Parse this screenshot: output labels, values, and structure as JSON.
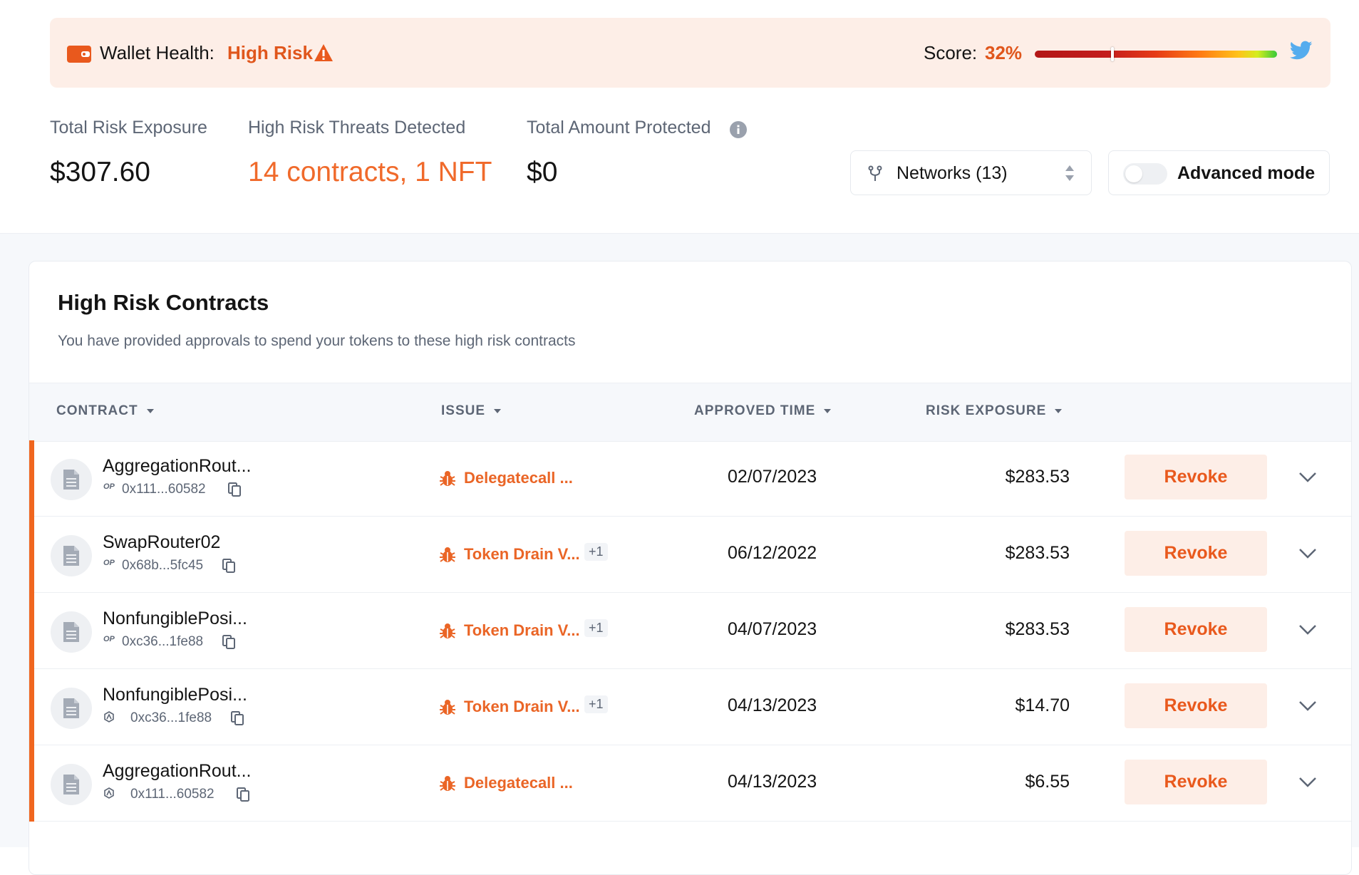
{
  "banner": {
    "health_label": "Wallet Health:",
    "health_value": "High Risk",
    "score_label": "Score:",
    "score_value": "32%",
    "score_fraction": 0.32,
    "icons": [
      "wallet-icon",
      "warning-icon",
      "twitter-icon"
    ]
  },
  "stats": {
    "exposure_label": "Total Risk Exposure",
    "exposure_value": "$307.60",
    "threats_label": "High Risk Threats Detected",
    "threats_value": "14 contracts, 1 NFT",
    "protected_label": "Total Amount Protected",
    "protected_value": "$0"
  },
  "controls": {
    "networks_label": "Networks (13)",
    "advanced_label": "Advanced mode",
    "advanced_on": false
  },
  "card": {
    "title": "High Risk Contracts",
    "subtitle": "You have provided approvals to spend your tokens to these high risk contracts",
    "columns": [
      "CONTRACT",
      "ISSUE",
      "APPROVED TIME",
      "RISK EXPOSURE"
    ],
    "revoke_label": "Revoke",
    "rows": [
      {
        "name": "AggregationRout...",
        "chain": "OP",
        "address": "0x111...60582",
        "issue": "Delegatecall ...",
        "extra": "",
        "date": "02/07/2023",
        "amount": "$283.53"
      },
      {
        "name": "SwapRouter02",
        "chain": "OP",
        "address": "0x68b...5fc45",
        "issue": "Token Drain V...",
        "extra": "+1",
        "date": "06/12/2022",
        "amount": "$283.53"
      },
      {
        "name": "NonfungiblePosi...",
        "chain": "OP",
        "address": "0xc36...1fe88",
        "issue": "Token Drain V...",
        "extra": "+1",
        "date": "04/07/2023",
        "amount": "$283.53"
      },
      {
        "name": "NonfungiblePosi...",
        "chain": "ARB",
        "address": "0xc36...1fe88",
        "issue": "Token Drain V...",
        "extra": "+1",
        "date": "04/13/2023",
        "amount": "$14.70"
      },
      {
        "name": "AggregationRout...",
        "chain": "ARB",
        "address": "0x111...60582",
        "issue": "Delegatecall ...",
        "extra": "",
        "date": "04/13/2023",
        "amount": "$6.55"
      }
    ]
  },
  "colors": {
    "accent": "#f0661f",
    "banner_bg": "#fdeee7",
    "text_muted": "#5d6675"
  }
}
